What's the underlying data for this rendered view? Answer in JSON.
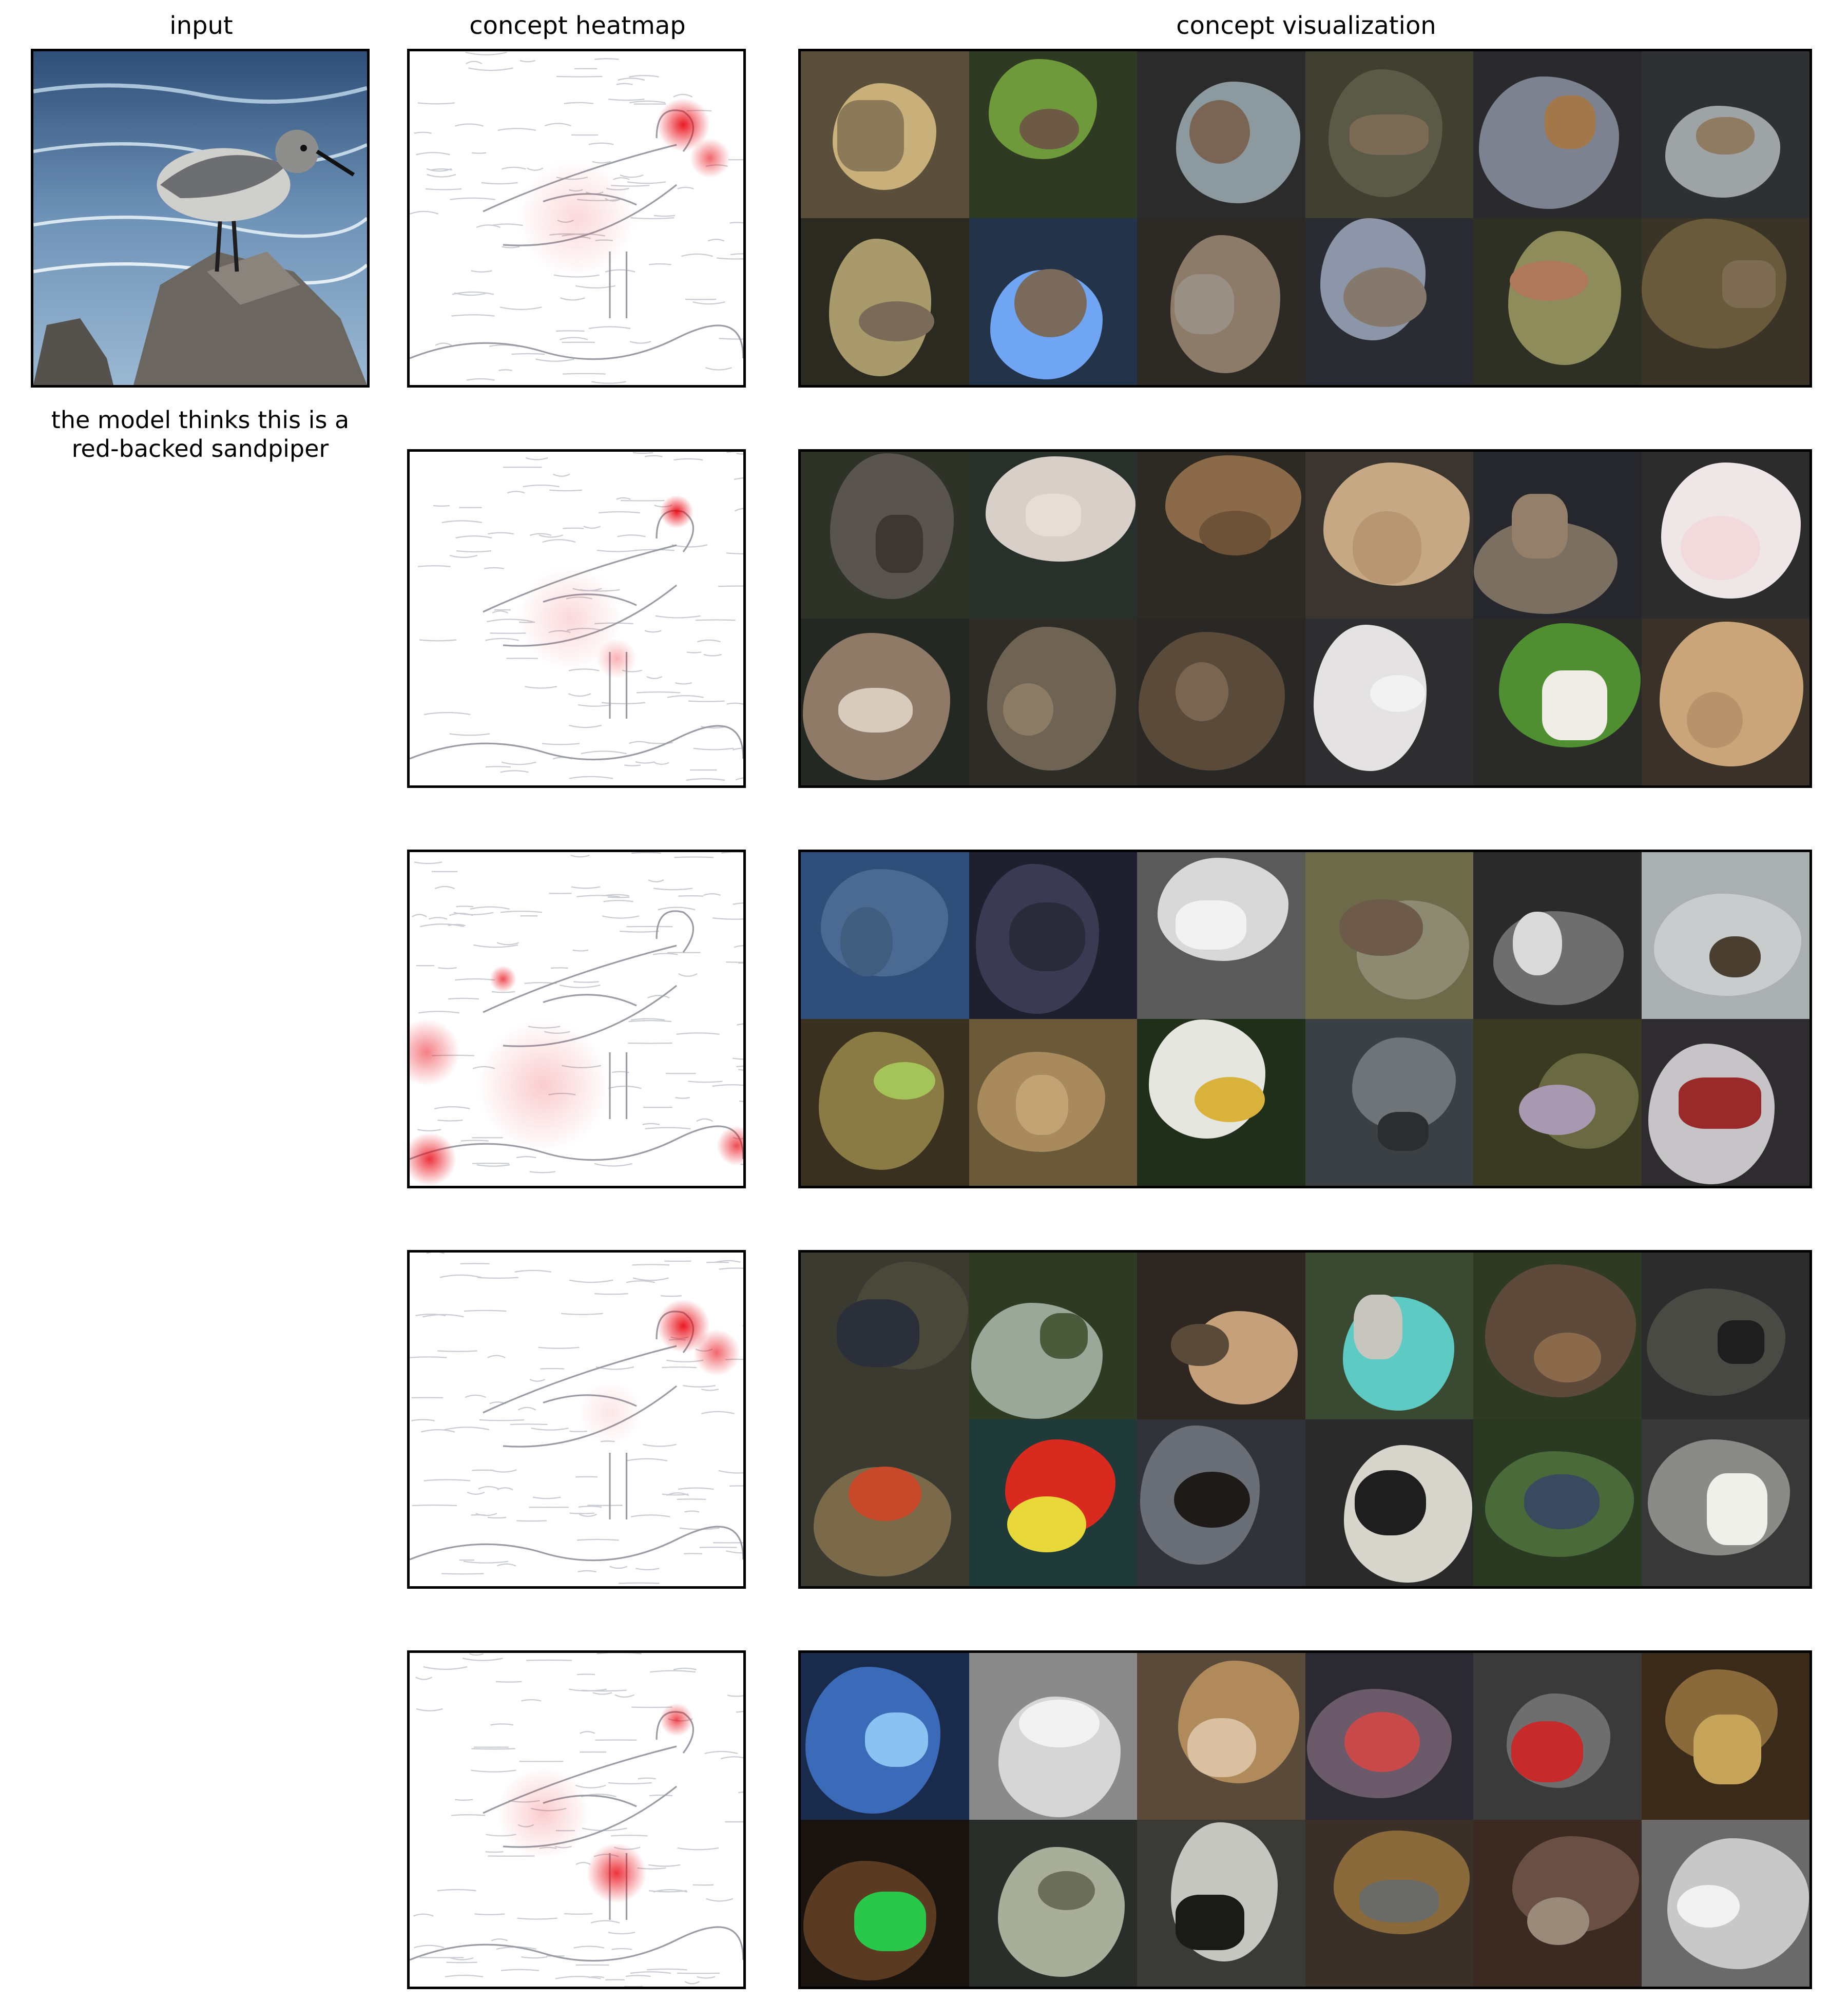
{
  "titles": {
    "input": "input",
    "heatmap": "concept heatmap",
    "visualization": "concept visualization"
  },
  "caption": {
    "line1": "the model thinks this is a",
    "line2": "red-backed sandpiper"
  },
  "colors": {
    "heat": "#e8000b",
    "outline": "#000000",
    "water": "#3d5f86",
    "rock": "#6b6660"
  },
  "concepts": [
    {
      "tiles": [
        {
          "bg": "#5a4f3a",
          "blob": "#c9b07a",
          "subj": "#8a7a5a"
        },
        {
          "bg": "#2e3a22",
          "blob": "#6f9a3c",
          "subj": "#6d5a44"
        },
        {
          "bg": "#2b2b2b",
          "blob": "#8c9aa0",
          "subj": "#7a6555"
        },
        {
          "bg": "#3f4030",
          "blob": "#5a5a46",
          "subj": "#7b6a54"
        },
        {
          "bg": "#2a2a2e",
          "blob": "#7d8290",
          "subj": "#a2784a"
        },
        {
          "bg": "#2e3033",
          "blob": "#9ea3a6",
          "subj": "#8f7a62"
        },
        {
          "bg": "#2a2a20",
          "blob": "#a89a6a",
          "subj": "#7a6a58"
        },
        {
          "bg": "#233349",
          "blob": "#6fa5f2",
          "subj": "#7a6a5c"
        },
        {
          "bg": "#2d2a26",
          "blob": "#8c7b68",
          "subj": "#9a8f84"
        },
        {
          "bg": "#2a2c33",
          "blob": "#8d96a8",
          "subj": "#85786c"
        },
        {
          "bg": "#2d3022",
          "blob": "#8e8c5a",
          "subj": "#b0785a"
        },
        {
          "bg": "#3a3426",
          "blob": "#6a5a3c",
          "subj": "#7e6c52"
        }
      ]
    },
    {
      "tiles": [
        {
          "bg": "#2f3327",
          "blob": "#5a5450",
          "subj": "#3e3630"
        },
        {
          "bg": "#28302c",
          "blob": "#d8cfc8",
          "subj": "#e6ddd6"
        },
        {
          "bg": "#2c2a22",
          "blob": "#8a6a48",
          "subj": "#6e5238"
        },
        {
          "bg": "#3a352e",
          "blob": "#c6a884",
          "subj": "#b89674"
        },
        {
          "bg": "#26272c",
          "blob": "#7b6f62",
          "subj": "#94806a"
        },
        {
          "bg": "#2c2c2c",
          "blob": "#efe6e8",
          "subj": "#f2d9dc"
        },
        {
          "bg": "#232823",
          "blob": "#8e7a66",
          "subj": "#d8cbbd"
        },
        {
          "bg": "#2d2c27",
          "blob": "#6f6354",
          "subj": "#8c7c66"
        },
        {
          "bg": "#2a2824",
          "blob": "#5a4a3a",
          "subj": "#7a6650"
        },
        {
          "bg": "#2e2e30",
          "blob": "#e4e2e2",
          "subj": "#f2f2f2"
        },
        {
          "bg": "#2a2a28",
          "blob": "#4f8f32",
          "subj": "#f0ece6"
        },
        {
          "bg": "#3a3228",
          "blob": "#c9a579",
          "subj": "#b8926a"
        }
      ]
    },
    {
      "tiles": [
        {
          "bg": "#2f4f7a",
          "blob": "#4a6a92",
          "subj": "#3f5d7e"
        },
        {
          "bg": "#1e2030",
          "blob": "#3a3a52",
          "subj": "#2a2a3a"
        },
        {
          "bg": "#5a5a5a",
          "blob": "#d8d8d8",
          "subj": "#f2f2f2"
        },
        {
          "bg": "#6d6a4a",
          "blob": "#8c8a70",
          "subj": "#6e5a48"
        },
        {
          "bg": "#2a2a2a",
          "blob": "#6e6e6e",
          "subj": "#dadada"
        },
        {
          "bg": "#aab0b2",
          "blob": "#c8cccc",
          "subj": "#4a3e30"
        },
        {
          "bg": "#3a3020",
          "blob": "#8a7a44",
          "subj": "#a4c45a"
        },
        {
          "bg": "#6a5a3a",
          "blob": "#a88a5c",
          "subj": "#c2a474"
        },
        {
          "bg": "#1f2f1a",
          "blob": "#e6e6e0",
          "subj": "#d8b23a"
        },
        {
          "bg": "#3a4044",
          "blob": "#6e7478",
          "subj": "#2a2e30"
        },
        {
          "bg": "#3a3a22",
          "blob": "#6a6a42",
          "subj": "#a898b0"
        },
        {
          "bg": "#2e2c2e",
          "blob": "#c6c4c6",
          "subj": "#9a2a2a"
        }
      ]
    },
    {
      "tiles": [
        {
          "bg": "#3a3a30",
          "blob": "#4a4838",
          "subj": "#2a2f3a"
        },
        {
          "bg": "#2e3a22",
          "blob": "#9aa89a",
          "subj": "#4a5a3a"
        },
        {
          "bg": "#2e2620",
          "blob": "#c6a07a",
          "subj": "#5a4a3a"
        },
        {
          "bg": "#3a4a32",
          "blob": "#5ecac4",
          "subj": "#c6c6be"
        },
        {
          "bg": "#2e3a24",
          "blob": "#5e4a3a",
          "subj": "#8a6a4a"
        },
        {
          "bg": "#2c2c2c",
          "blob": "#4a4a44",
          "subj": "#1e1e1e"
        },
        {
          "bg": "#3a3a30",
          "blob": "#7a6a4a",
          "subj": "#c84a2a"
        },
        {
          "bg": "#203a3a",
          "blob": "#d82a1e",
          "subj": "#e8d83a"
        },
        {
          "bg": "#30343a",
          "blob": "#6a6e76",
          "subj": "#1e1a18"
        },
        {
          "bg": "#2a2a2a",
          "blob": "#d8d6cc",
          "subj": "#1e1e1e"
        },
        {
          "bg": "#2a3a22",
          "blob": "#4a6a3a",
          "subj": "#3a4a5e"
        },
        {
          "bg": "#383838",
          "blob": "#8a8a86",
          "subj": "#f0f0ea"
        }
      ]
    },
    {
      "tiles": [
        {
          "bg": "#1a2a4a",
          "blob": "#3a6ab8",
          "subj": "#8ac2f2"
        },
        {
          "bg": "#8a8a8a",
          "blob": "#d6d6d6",
          "subj": "#f2f2f2"
        },
        {
          "bg": "#5a4a3a",
          "blob": "#b08a5a",
          "subj": "#d8c0a0"
        },
        {
          "bg": "#2a2a30",
          "blob": "#6a5a6a",
          "subj": "#c84a4a"
        },
        {
          "bg": "#3a3a3a",
          "blob": "#6e6e6e",
          "subj": "#c62a2a"
        },
        {
          "bg": "#3a2a1a",
          "blob": "#8a6a3a",
          "subj": "#c6a45a"
        },
        {
          "bg": "#1a1410",
          "blob": "#5a3a20",
          "subj": "#2ac84a"
        },
        {
          "bg": "#2a2e2a",
          "blob": "#a8ae9a",
          "subj": "#6a6e5a"
        },
        {
          "bg": "#3a3a36",
          "blob": "#c6c6c0",
          "subj": "#1a1a18"
        },
        {
          "bg": "#3a3028",
          "blob": "#8a6a3a",
          "subj": "#6a6a66"
        },
        {
          "bg": "#3a2a22",
          "blob": "#6a5044",
          "subj": "#9a8a7a"
        },
        {
          "bg": "#6a6a6a",
          "blob": "#c8c8c8",
          "subj": "#f2f2f2"
        }
      ]
    }
  ]
}
